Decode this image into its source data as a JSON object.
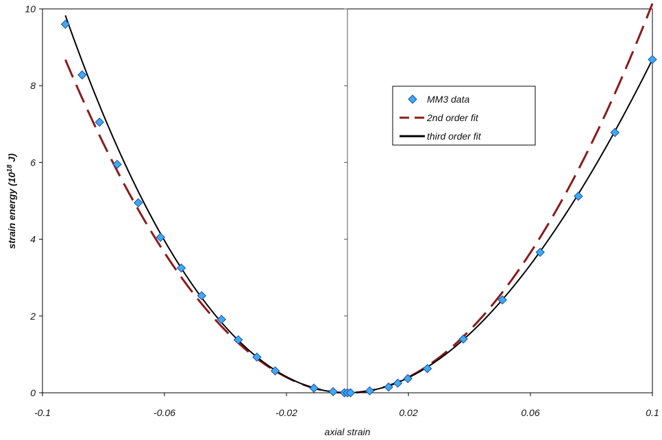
{
  "chart_data": {
    "type": "scatter",
    "title": "",
    "xlabel": "axial strain",
    "ylabel_main": "strain energy (10",
    "ylabel_sup": "18",
    "ylabel_end": " J)",
    "xlim": [
      -0.1,
      0.1
    ],
    "ylim": [
      0,
      10
    ],
    "x_ticks": [
      -0.1,
      -0.06,
      -0.02,
      0.02,
      0.06,
      0.1
    ],
    "x_tick_labels": [
      "-0.1",
      "-0.06",
      "-0.02",
      "0.02",
      "0.06",
      "0.1"
    ],
    "y_ticks": [
      0,
      2,
      4,
      6,
      8,
      10
    ],
    "y_tick_labels": [
      "0",
      "2",
      "4",
      "6",
      "8",
      "10"
    ],
    "grid": false,
    "legend_position": "upper-right-center",
    "colors": {
      "marker_fill": "#3fa9f5",
      "marker_edge": "#1a4f9c",
      "fit2": "#8b1a1a",
      "fit3": "#000000"
    },
    "series": [
      {
        "name": "MM3 data",
        "kind": "markers",
        "points": [
          [
            -0.0925,
            9.6
          ],
          [
            -0.087,
            8.28
          ],
          [
            -0.0813,
            7.05
          ],
          [
            -0.0755,
            5.95
          ],
          [
            -0.0686,
            4.95
          ],
          [
            -0.0613,
            4.05
          ],
          [
            -0.0545,
            3.25
          ],
          [
            -0.0478,
            2.53
          ],
          [
            -0.0413,
            1.91
          ],
          [
            -0.0358,
            1.38
          ],
          [
            -0.0297,
            0.93
          ],
          [
            -0.0237,
            0.57
          ],
          [
            -0.011,
            0.12
          ],
          [
            -0.0047,
            0.03
          ],
          [
            -0.001,
            0.0
          ],
          [
            0.0,
            0.0
          ],
          [
            0.001,
            0.0
          ],
          [
            0.0073,
            0.05
          ],
          [
            0.0135,
            0.15
          ],
          [
            0.0165,
            0.25
          ],
          [
            0.0198,
            0.37
          ],
          [
            0.0262,
            0.63
          ],
          [
            0.038,
            1.4
          ],
          [
            0.0508,
            2.42
          ],
          [
            0.0632,
            3.66
          ],
          [
            0.0757,
            5.12
          ],
          [
            0.0877,
            6.78
          ],
          [
            0.1,
            8.68
          ]
        ]
      },
      {
        "name": "2nd order fit",
        "kind": "dashed",
        "coefficients": {
          "a2": 1014,
          "a3": 0
        },
        "x_range": [
          -0.0925,
          0.1
        ]
      },
      {
        "name": "third order fit",
        "kind": "solid",
        "coefficients": {
          "a2": 1014,
          "a3": -1460
        },
        "x_range": [
          -0.0925,
          0.1
        ]
      }
    ],
    "legend": [
      "MM3 data",
      "2nd order fit",
      "third order fit"
    ]
  }
}
